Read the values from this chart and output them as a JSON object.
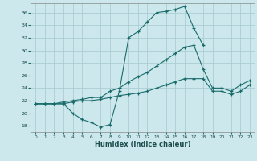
{
  "xlabel": "Humidex (Indice chaleur)",
  "background_color": "#cce8ec",
  "grid_color": "#aacdd4",
  "line_color": "#1a6b6b",
  "xlim": [
    -0.5,
    23.5
  ],
  "ylim": [
    17,
    37.5
  ],
  "yticks": [
    18,
    20,
    22,
    24,
    26,
    28,
    30,
    32,
    34,
    36
  ],
  "xticks": [
    0,
    1,
    2,
    3,
    4,
    5,
    6,
    7,
    8,
    9,
    10,
    11,
    12,
    13,
    14,
    15,
    16,
    17,
    18,
    19,
    20,
    21,
    22,
    23
  ],
  "series": [
    [
      21.5,
      21.5,
      21.5,
      21.5,
      20.0,
      19.0,
      18.5,
      17.8,
      18.2,
      23.5,
      32.0,
      33.0,
      34.5,
      36.0,
      36.2,
      36.5,
      37.0,
      33.5,
      30.8,
      null,
      null,
      null,
      null,
      null
    ],
    [
      21.5,
      21.5,
      21.5,
      21.8,
      22.0,
      22.2,
      22.5,
      22.5,
      23.5,
      24.0,
      25.0,
      25.8,
      26.5,
      27.5,
      28.5,
      29.5,
      30.5,
      30.8,
      27.0,
      24.0,
      24.0,
      23.5,
      24.5,
      25.2
    ],
    [
      21.5,
      21.5,
      21.5,
      21.5,
      21.8,
      22.0,
      22.0,
      22.2,
      22.5,
      22.8,
      23.0,
      23.2,
      23.5,
      24.0,
      24.5,
      25.0,
      25.5,
      25.5,
      25.5,
      23.5,
      23.5,
      23.0,
      23.5,
      24.5
    ]
  ]
}
